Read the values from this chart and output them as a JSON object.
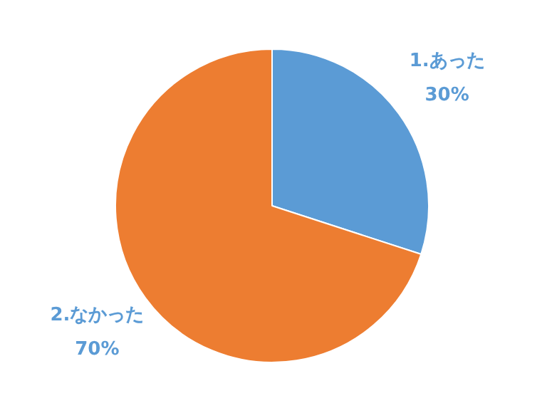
{
  "chart_data": {
    "type": "pie",
    "categories": [
      "1.あった",
      "2.なかった"
    ],
    "values": [
      30,
      70
    ],
    "colors": [
      "#5b9bd5",
      "#ed7d31"
    ],
    "value_labels": [
      "30%",
      "70%"
    ],
    "legend": false
  }
}
